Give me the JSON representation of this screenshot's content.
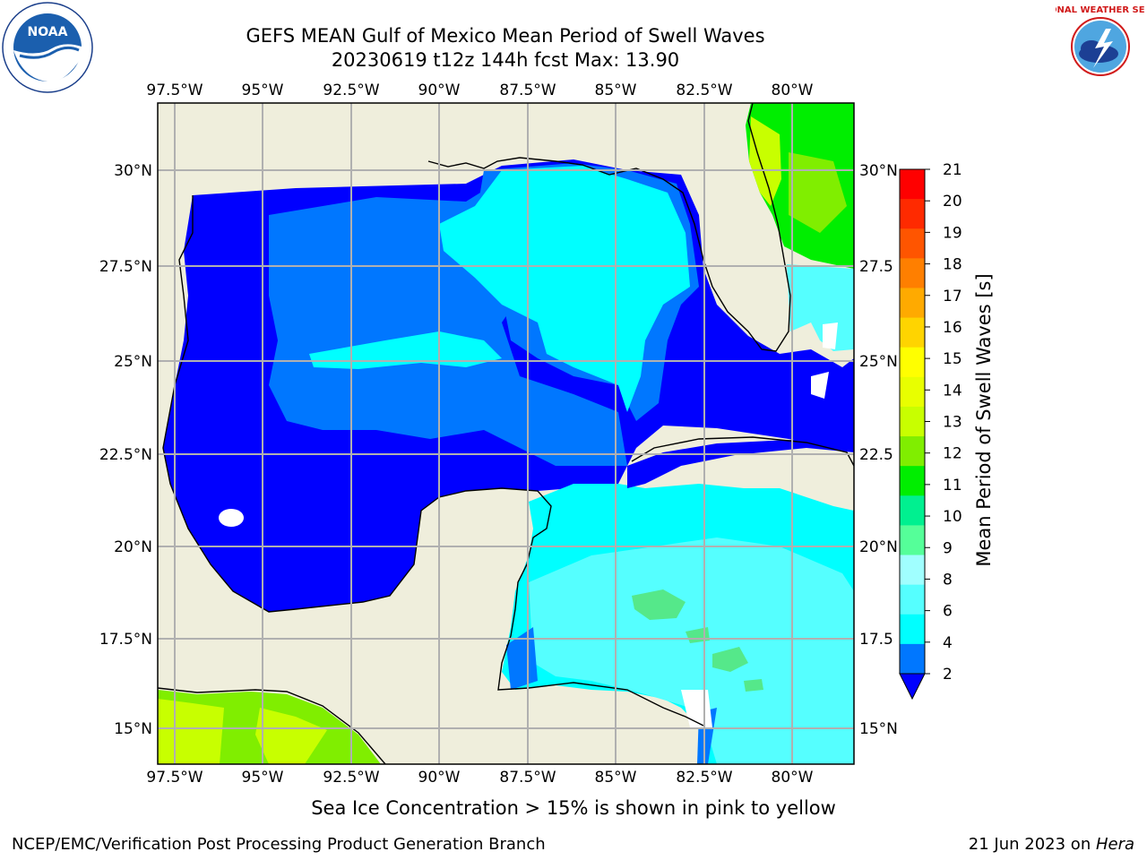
{
  "header": {
    "title_line1": "GEFS MEAN Gulf of Mexico Mean Period of Swell Waves",
    "title_line2": "20230619 t12z 144h fcst   Max: 13.90"
  },
  "map": {
    "lon_ticks": [
      "97.5°W",
      "95°W",
      "92.5°W",
      "90°W",
      "87.5°W",
      "85°W",
      "82.5°W",
      "80°W"
    ],
    "lat_ticks_left": [
      "30°N",
      "27.5°N",
      "25°N",
      "22.5°N",
      "20°N",
      "17.5°N",
      "15°N"
    ],
    "lat_ticks_right": [
      "30°N",
      "27.5",
      "25°N",
      "22.5",
      "20°N",
      "17.5",
      "15°N"
    ],
    "land_color": "#efeedc",
    "colors": {
      "deep_blue": "#0000ff",
      "mid_blue": "#0077ff",
      "cyan": "#00ffff",
      "light_cyan": "#55ffff",
      "green": "#55e88a",
      "lime": "#80ee00",
      "yellow_green": "#c8ff00"
    }
  },
  "colorbar": {
    "label": "Mean Period of Swell Waves [s]",
    "ticks": [
      "21",
      "20",
      "19",
      "18",
      "17",
      "16",
      "15",
      "14",
      "13",
      "12",
      "11",
      "10",
      "9",
      "8",
      "6",
      "4",
      "2"
    ],
    "colors": [
      "#ff0000",
      "#ff2a00",
      "#ff5500",
      "#ff7f00",
      "#ffaa00",
      "#ffd400",
      "#ffff00",
      "#e8ff00",
      "#c8ff00",
      "#80ee00",
      "#00ee00",
      "#00f090",
      "#55ff99",
      "#a0ffff",
      "#55ffff",
      "#00ffff",
      "#0077ff",
      "#0000ff"
    ]
  },
  "caption": "Sea Ice Concentration > 15% is shown in pink to yellow",
  "footer": {
    "left": "NCEP/EMC/Verification Post Processing Product Generation Branch",
    "right_prefix": "21 Jun 2023 on ",
    "right_host": "Hera"
  },
  "logos": {
    "noaa_text": "NOAA",
    "nws_text": "NATIONAL WEATHER SERVICE"
  }
}
